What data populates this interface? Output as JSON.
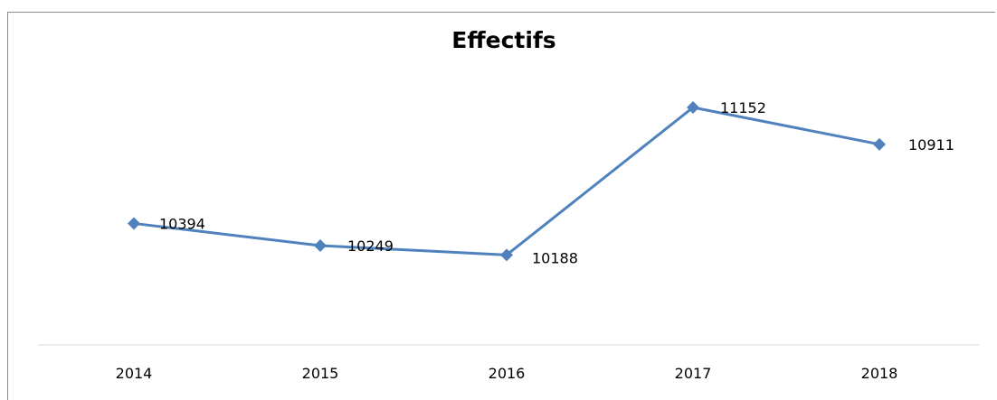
{
  "chart_data": {
    "type": "line",
    "title": "Effectifs",
    "xlabel": "",
    "ylabel": "",
    "categories": [
      "2014",
      "2015",
      "2016",
      "2017",
      "2018"
    ],
    "series": [
      {
        "values": [
          10394,
          10249,
          10188,
          11152,
          10911
        ],
        "color": "#4f81bd"
      }
    ],
    "data_labels": [
      "10394",
      "10249",
      "10188",
      "11152",
      "10911"
    ],
    "ylim": [
      9600,
      11500
    ],
    "grid": false,
    "legend": "none",
    "axis_color": "#d9d9d9"
  }
}
